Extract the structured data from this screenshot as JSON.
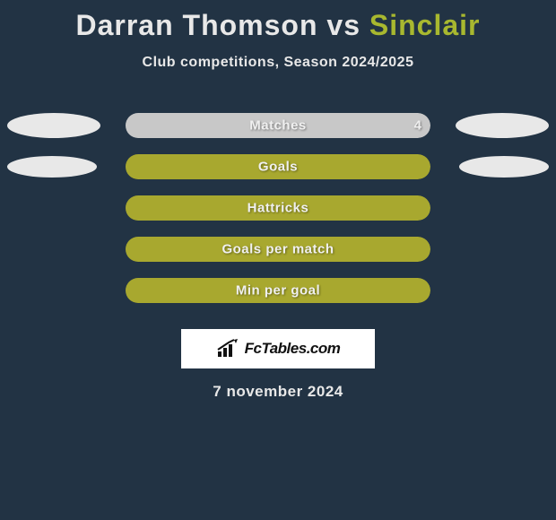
{
  "title": {
    "player1": "Darran Thomson",
    "vs": "vs",
    "player2": "Sinclair"
  },
  "subtitle": "Club competitions, Season 2024/2025",
  "colors": {
    "background": "#223344",
    "text_light": "#e8e8e8",
    "accent": "#a8b82f",
    "bar_empty": "#a8a82f",
    "player1_bar": "#c8c8c8",
    "player2_bar": "#a8b82f",
    "ellipse": "#e8e8e8",
    "logo_bg": "#ffffff"
  },
  "ellipse_sizes": [
    {
      "left_w": 104,
      "left_h": 28,
      "right_w": 104,
      "right_h": 28
    },
    {
      "left_w": 100,
      "left_h": 24,
      "right_w": 100,
      "right_h": 24
    }
  ],
  "stats": [
    {
      "label": "Matches",
      "left_value": "",
      "right_value": "4",
      "left_pct": 0,
      "right_pct": 100,
      "left_color": "#c8c8c8",
      "right_color": "#c8c8c8",
      "show_ellipses": true,
      "ellipse_idx": 0
    },
    {
      "label": "Goals",
      "left_value": "",
      "right_value": "",
      "left_pct": 0,
      "right_pct": 100,
      "left_color": "#a8a82f",
      "right_color": "#a8a82f",
      "show_ellipses": true,
      "ellipse_idx": 1
    },
    {
      "label": "Hattricks",
      "left_value": "",
      "right_value": "",
      "left_pct": 0,
      "right_pct": 100,
      "left_color": "#a8a82f",
      "right_color": "#a8a82f",
      "show_ellipses": false
    },
    {
      "label": "Goals per match",
      "left_value": "",
      "right_value": "",
      "left_pct": 0,
      "right_pct": 100,
      "left_color": "#a8a82f",
      "right_color": "#a8a82f",
      "show_ellipses": false
    },
    {
      "label": "Min per goal",
      "left_value": "",
      "right_value": "",
      "left_pct": 0,
      "right_pct": 100,
      "left_color": "#a8a82f",
      "right_color": "#a8a82f",
      "show_ellipses": false
    }
  ],
  "logo_text": "FcTables.com",
  "date": "7 november 2024"
}
